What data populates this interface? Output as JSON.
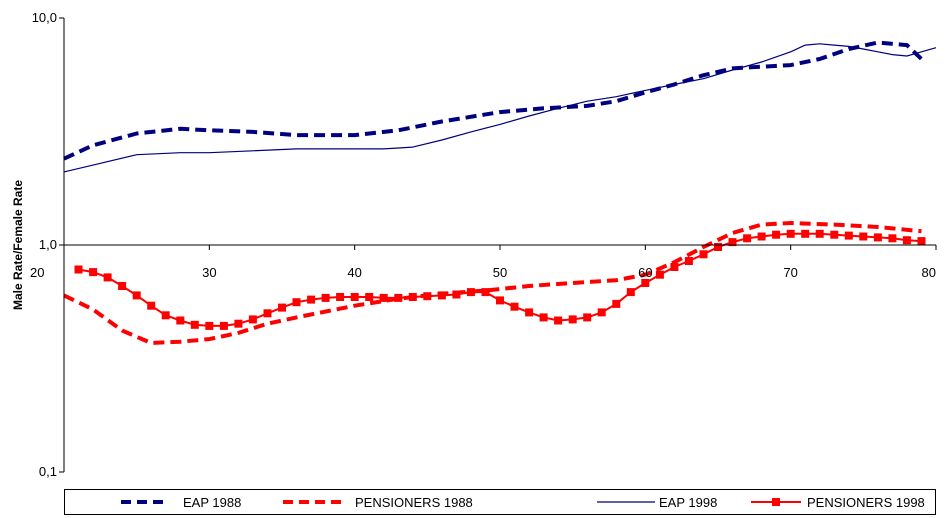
{
  "chart_data": {
    "type": "line",
    "ylabel": "Male Rate/Female Rate",
    "xlim": [
      20,
      80
    ],
    "ylim": [
      0.1,
      10
    ],
    "y_scale": "log",
    "x_ticks": [
      "20",
      "30",
      "40",
      "50",
      "60",
      "70",
      "80"
    ],
    "y_ticks": [
      "10,0",
      "1,0",
      "0,1"
    ],
    "grid": false,
    "legend_position": "bottom",
    "series": [
      {
        "name": "EAP 1988",
        "color": "#000080",
        "style": "dashed-thick",
        "x": [
          20,
          22,
          25,
          28,
          30,
          33,
          36,
          40,
          43,
          46,
          50,
          53,
          56,
          58,
          60,
          62,
          64,
          66,
          68,
          70,
          72,
          74,
          76,
          78,
          79
        ],
        "y": [
          2.4,
          2.75,
          3.1,
          3.25,
          3.2,
          3.15,
          3.05,
          3.05,
          3.2,
          3.5,
          3.85,
          4.0,
          4.1,
          4.3,
          4.7,
          5.1,
          5.6,
          6.0,
          6.1,
          6.2,
          6.6,
          7.3,
          7.8,
          7.6,
          6.6
        ]
      },
      {
        "name": "PENSIONERS 1988",
        "color": "#ff0000",
        "style": "dashed-thick",
        "x": [
          20,
          22,
          24,
          26,
          28,
          30,
          32,
          34,
          36,
          40,
          43,
          46,
          49,
          52,
          55,
          58,
          60,
          62,
          64,
          66,
          68,
          70,
          73,
          76,
          79
        ],
        "y": [
          0.6,
          0.52,
          0.42,
          0.37,
          0.375,
          0.385,
          0.41,
          0.45,
          0.48,
          0.54,
          0.58,
          0.61,
          0.63,
          0.66,
          0.68,
          0.7,
          0.74,
          0.84,
          0.98,
          1.13,
          1.23,
          1.25,
          1.23,
          1.2,
          1.15
        ]
      },
      {
        "name": "EAP 1998",
        "color": "#000080",
        "style": "solid-thin",
        "x": [
          20,
          22,
          25,
          28,
          30,
          33,
          36,
          39,
          42,
          44,
          46,
          48,
          50,
          52,
          54,
          56,
          58,
          60,
          62,
          64,
          66,
          68,
          70,
          71,
          72,
          73,
          74,
          75,
          76,
          77,
          78,
          79,
          80
        ],
        "y": [
          2.1,
          2.25,
          2.5,
          2.55,
          2.55,
          2.6,
          2.65,
          2.65,
          2.65,
          2.7,
          2.9,
          3.15,
          3.4,
          3.7,
          4.0,
          4.3,
          4.5,
          4.8,
          5.1,
          5.4,
          5.9,
          6.4,
          7.1,
          7.6,
          7.7,
          7.6,
          7.5,
          7.3,
          7.1,
          6.9,
          6.8,
          7.1,
          7.4
        ]
      },
      {
        "name": "PENSIONERS 1998",
        "color": "#ff0000",
        "style": "solid-marker",
        "x": [
          21,
          22,
          23,
          24,
          25,
          26,
          27,
          28,
          29,
          30,
          31,
          32,
          33,
          34,
          35,
          36,
          37,
          38,
          39,
          40,
          41,
          42,
          43,
          44,
          45,
          46,
          47,
          48,
          49,
          50,
          51,
          52,
          53,
          54,
          55,
          56,
          57,
          58,
          59,
          60,
          61,
          62,
          63,
          64,
          65,
          66,
          67,
          68,
          69,
          70,
          71,
          72,
          73,
          74,
          75,
          76,
          77,
          78,
          79
        ],
        "y": [
          0.78,
          0.76,
          0.72,
          0.66,
          0.6,
          0.54,
          0.49,
          0.465,
          0.445,
          0.44,
          0.44,
          0.45,
          0.47,
          0.5,
          0.53,
          0.56,
          0.575,
          0.585,
          0.59,
          0.59,
          0.59,
          0.585,
          0.585,
          0.59,
          0.595,
          0.6,
          0.605,
          0.62,
          0.62,
          0.57,
          0.535,
          0.505,
          0.48,
          0.465,
          0.47,
          0.48,
          0.505,
          0.55,
          0.62,
          0.68,
          0.74,
          0.8,
          0.85,
          0.91,
          0.98,
          1.03,
          1.07,
          1.09,
          1.11,
          1.12,
          1.12,
          1.12,
          1.11,
          1.1,
          1.09,
          1.08,
          1.07,
          1.05,
          1.04
        ]
      }
    ]
  }
}
